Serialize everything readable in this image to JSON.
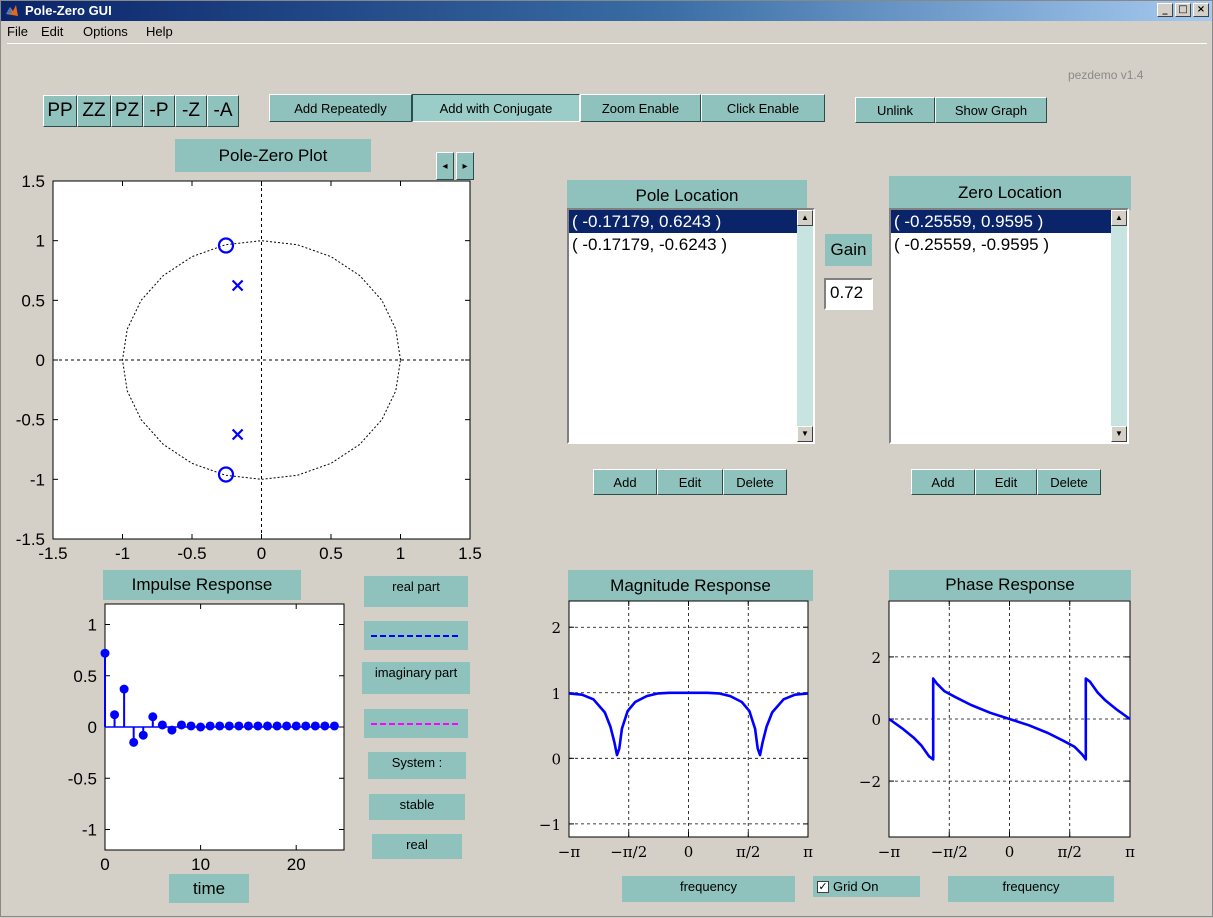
{
  "window": {
    "title": "Pole-Zero GUI",
    "controls": [
      "_",
      "□",
      "×"
    ]
  },
  "menu": [
    "File",
    "Edit",
    "Options",
    "Help"
  ],
  "version": "pezdemo v1.4",
  "toolbar": {
    "quick": [
      "PP",
      "ZZ",
      "PZ",
      "-P",
      "-Z",
      "-A"
    ],
    "modes": [
      "Add Repeatedly",
      "Add with Conjugate",
      "Zoom Enable",
      "Click Enable"
    ],
    "links": [
      "Unlink",
      "Show Graph"
    ]
  },
  "pole_zero": {
    "title": "Pole-Zero Plot",
    "zoom_arrows": [
      "◂",
      "▸"
    ]
  },
  "poles": {
    "title": "Pole Location",
    "items": [
      "( -0.17179, 0.6243 )",
      "( -0.17179, -0.6243 )"
    ],
    "buttons": [
      "Add",
      "Edit",
      "Delete"
    ]
  },
  "zeros": {
    "title": "Zero Location",
    "items": [
      "( -0.25559, 0.9595 )",
      "( -0.25559, -0.9595 )"
    ],
    "buttons": [
      "Add",
      "Edit",
      "Delete"
    ]
  },
  "gain": {
    "label": "Gain",
    "value": "0.72"
  },
  "impulse": {
    "title": "Impulse Response",
    "xlabel": "time",
    "legend_real": "real part",
    "legend_imag": "imaginary part",
    "system_label": "System :",
    "stable": "stable",
    "real": "real"
  },
  "magnitude": {
    "title": "Magnitude Response",
    "xlabel": "frequency"
  },
  "phase": {
    "title": "Phase Response",
    "xlabel": "frequency"
  },
  "grid_toggle": {
    "label": "Grid On",
    "checked": "✓"
  },
  "colors": {
    "accent": "#8fc2bc",
    "series": "#0000ff",
    "imag": "#ff00ff",
    "selection": "#0a246a"
  },
  "chart_data": [
    {
      "type": "scatter",
      "title": "Pole-Zero Plot",
      "xlim": [
        -1.5,
        1.5
      ],
      "ylim": [
        -1.5,
        1.5
      ],
      "xticks": [
        -1.5,
        -1,
        -0.5,
        0,
        0.5,
        1,
        1.5
      ],
      "yticks": [
        -1.5,
        -1,
        -0.5,
        0,
        0.5,
        1,
        1.5
      ],
      "xtick_labels": [
        "-1.5",
        "-1",
        "-0.5",
        "0",
        "0.5",
        "1",
        "1.5"
      ],
      "ytick_labels": [
        "-1.5",
        "-1",
        "-0.5",
        "0",
        "0.5",
        "1",
        "1.5"
      ],
      "unit_circle": true,
      "poles": [
        [
          -0.17179,
          0.6243
        ],
        [
          -0.17179,
          -0.6243
        ]
      ],
      "zeros": [
        [
          -0.25559,
          0.9595
        ],
        [
          -0.25559,
          -0.9595
        ]
      ]
    },
    {
      "type": "scatter",
      "title": "Impulse Response",
      "xlabel": "time",
      "xlim": [
        0,
        25
      ],
      "ylim": [
        -1.2,
        1.2
      ],
      "xticks": [
        0,
        10,
        20
      ],
      "yticks": [
        -1,
        -0.5,
        0,
        0.5,
        1
      ],
      "xtick_labels": [
        "0",
        "10",
        "20"
      ],
      "ytick_labels": [
        "-1",
        "-0.5",
        "0",
        "0.5",
        "1"
      ],
      "n": [
        0,
        1,
        2,
        3,
        4,
        5,
        6,
        7,
        8,
        9,
        10,
        11,
        12,
        13,
        14,
        15,
        16,
        17,
        18,
        19,
        20,
        21,
        22,
        23,
        24
      ],
      "values": [
        0.72,
        0.12,
        0.37,
        -0.15,
        -0.08,
        0.1,
        0.02,
        -0.03,
        0.02,
        0.01,
        0,
        0.01,
        0.01,
        0.01,
        0.01,
        0.01,
        0.01,
        0.01,
        0.01,
        0.01,
        0.01,
        0.01,
        0.01,
        0.01,
        0.01
      ]
    },
    {
      "type": "line",
      "title": "Magnitude Response",
      "xlabel": "frequency",
      "xlim": [
        -3.1416,
        3.1416
      ],
      "ylim": [
        -1.2,
        2.4
      ],
      "xticks": [
        -3.1416,
        -1.5708,
        0,
        1.5708,
        3.1416
      ],
      "xtick_labels": [
        "−π",
        "−π/2",
        "0",
        "π/2",
        "π"
      ],
      "yticks": [
        -1,
        0,
        1,
        2
      ],
      "ytick_labels": [
        "−1",
        "0",
        "1",
        "2"
      ],
      "grid": true,
      "x": [
        -3.14,
        -2.8,
        -2.5,
        -2.2,
        -2.05,
        -1.95,
        -1.88,
        -1.82,
        -1.75,
        -1.6,
        -1.4,
        -1.1,
        -0.8,
        -0.5,
        0,
        0.5,
        0.8,
        1.1,
        1.4,
        1.6,
        1.75,
        1.82,
        1.88,
        1.95,
        2.05,
        2.2,
        2.5,
        2.8,
        3.14
      ],
      "y": [
        0.99,
        0.97,
        0.9,
        0.7,
        0.48,
        0.25,
        0.05,
        0.15,
        0.45,
        0.72,
        0.86,
        0.95,
        0.99,
        1.0,
        1.0,
        1.0,
        0.99,
        0.95,
        0.86,
        0.72,
        0.45,
        0.15,
        0.05,
        0.25,
        0.48,
        0.7,
        0.9,
        0.97,
        0.99
      ]
    },
    {
      "type": "line",
      "title": "Phase Response",
      "xlabel": "frequency",
      "xlim": [
        -3.1416,
        3.1416
      ],
      "ylim": [
        -3.8,
        3.8
      ],
      "xticks": [
        -3.1416,
        -1.5708,
        0,
        1.5708,
        3.1416
      ],
      "xtick_labels": [
        "−π",
        "−π/2",
        "0",
        "π/2",
        "π"
      ],
      "yticks": [
        -2,
        0,
        2
      ],
      "ytick_labels": [
        "−2",
        "0",
        "2"
      ],
      "grid": true,
      "x": [
        -3.14,
        -2.8,
        -2.5,
        -2.3,
        -2.1,
        -1.99,
        -1.99,
        -1.9,
        -1.7,
        -1.4,
        -1.0,
        -0.5,
        0,
        0.5,
        1.0,
        1.4,
        1.7,
        1.9,
        1.99,
        1.99,
        2.1,
        2.3,
        2.5,
        2.8,
        3.14
      ],
      "y": [
        0,
        -0.3,
        -0.6,
        -0.85,
        -1.2,
        -1.3,
        1.3,
        1.15,
        0.9,
        0.7,
        0.45,
        0.2,
        0,
        -0.2,
        -0.45,
        -0.7,
        -0.9,
        -1.15,
        -1.3,
        1.3,
        1.2,
        0.85,
        0.6,
        0.3,
        0
      ]
    }
  ]
}
